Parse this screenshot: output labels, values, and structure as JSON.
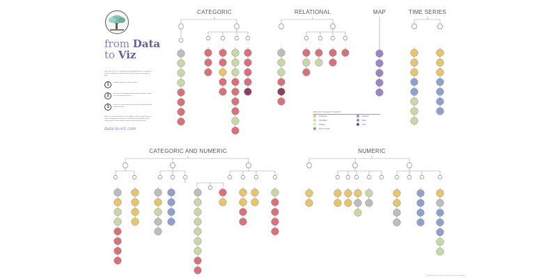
{
  "logo": {
    "line1a": "from ",
    "line1b": "Data",
    "line2a": "to ",
    "line2b": "Viz"
  },
  "intro_text": "From Data to Viz is a classification of chart types based on input data format. It will help you find the perfect chart to show a given type of data.",
  "steps": [
    {
      "num": "1",
      "text": "Identify what type of data you have"
    },
    {
      "num": "2",
      "text": "Go to the corresponding decision tree and follow it down to a set of possible charts"
    },
    {
      "num": "3",
      "text": "Choose the chart from the set that will suit your data and your needs best"
    }
  ],
  "outro_text": "Below is a non-exhaustive list of possibilities and the project does not claim to be exhaustive. However it should provide you with a good starting point. For an interactive version and much more, visit:",
  "website": "data-to-viz.com",
  "sections": {
    "categoric": "CATEGORIC",
    "relational": "RELATIONAL",
    "map": "MAP",
    "time_series": "TIME SERIES",
    "categoric_numeric": "CATEGORIC AND NUMERIC",
    "numeric": "NUMERIC"
  },
  "legend": {
    "title": "WHAT DO YOU WANT TO SHOW?",
    "items": [
      "Distribution",
      "Correlation",
      "Ranking",
      "Part of a whole",
      "Evolution",
      "Maps",
      "Flow"
    ],
    "colors": [
      "#e8c46a",
      "#c9d9a6",
      "#d9e8b8",
      "#d9707a",
      "#8fa2cf",
      "#9a86c4",
      "#8a4060"
    ]
  },
  "footer": "WWW.DATA-TO-VIZ.COM - BY YAN HOLTZ & CONOR HEALY",
  "colors": {
    "distribution": "#e8c46a",
    "correlation": "#c9d9a6",
    "ranking": "#d9e8b8",
    "part": "#d9707a",
    "evolution": "#8fa2cf",
    "map": "#9a86c4",
    "flow": "#8a4060",
    "grey": "#bdbdbd",
    "line": "#9a9a9a"
  }
}
